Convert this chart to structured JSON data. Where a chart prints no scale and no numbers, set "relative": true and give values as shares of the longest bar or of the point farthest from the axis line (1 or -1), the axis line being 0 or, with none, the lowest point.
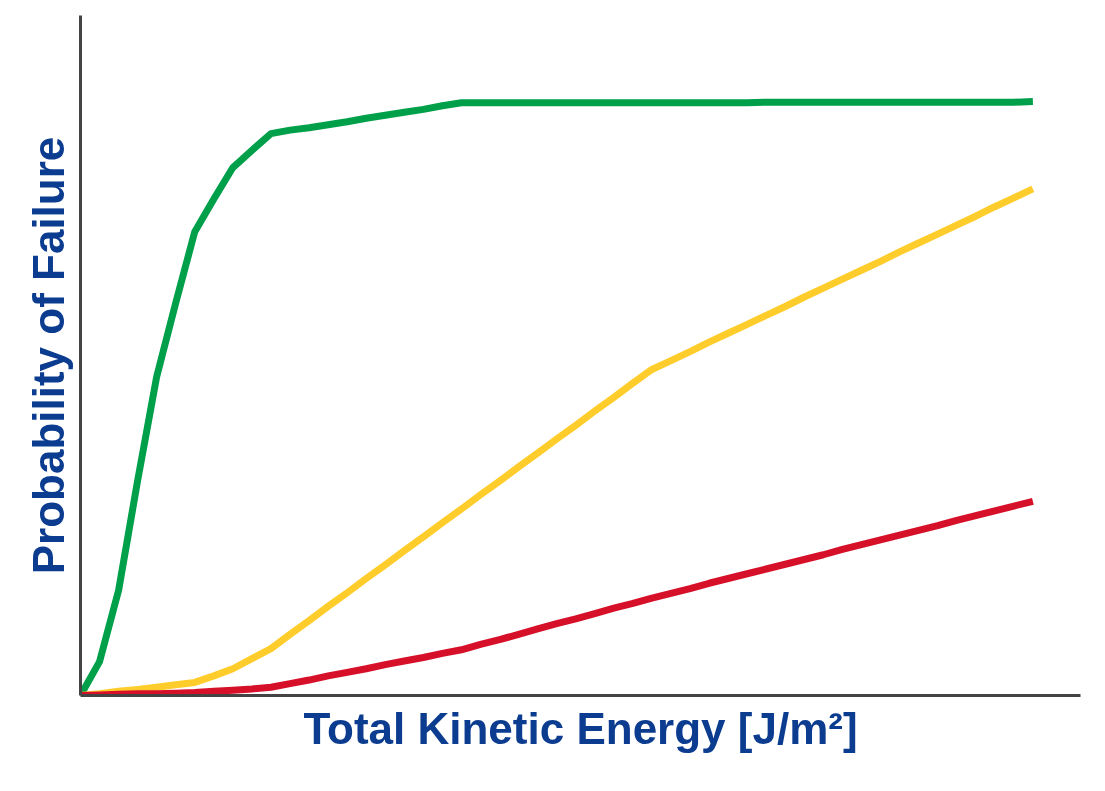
{
  "chart_data": {
    "type": "line",
    "relative": true,
    "xlabel": "Total Kinetic Energy [J/m²]",
    "ylabel": "Probability of Failure",
    "grid": false,
    "marker": "none",
    "line_style": "solid",
    "categories": [
      null,
      null,
      null,
      null,
      null,
      null,
      null,
      null,
      null,
      null,
      null,
      null,
      null,
      null,
      null,
      null,
      null,
      null,
      null,
      null,
      null,
      null,
      null,
      null,
      null,
      null,
      null,
      null,
      null,
      null,
      null,
      null,
      null,
      null,
      null,
      null,
      null,
      null,
      null,
      null,
      null,
      null,
      null,
      null,
      null,
      null,
      null,
      null,
      null,
      null,
      null
    ],
    "series": [
      {
        "color": "#00a04b",
        "values": [
          0,
          0.057,
          0.177,
          0.362,
          0.537,
          0.661,
          0.781,
          0.836,
          0.889,
          0.918,
          0.946,
          0.952,
          0.956,
          0.961,
          0.966,
          0.972,
          0.977,
          0.982,
          0.987,
          0.993,
          0.998,
          0.998,
          0.998,
          0.998,
          0.998,
          0.998,
          0.998,
          0.998,
          0.998,
          0.998,
          0.998,
          0.998,
          0.998,
          0.998,
          0.998,
          0.998,
          0.999,
          0.999,
          0.999,
          0.999,
          0.999,
          0.999,
          0.999,
          0.999,
          0.999,
          0.999,
          0.999,
          0.999,
          0.999,
          0.999,
          1
        ]
      },
      {
        "color": "#fecd2b",
        "values": [
          0,
          0.003,
          0.007,
          0.01,
          0.014,
          0.018,
          0.022,
          0.033,
          0.045,
          0.062,
          0.079,
          0.103,
          0.126,
          0.15,
          0.173,
          0.197,
          0.22,
          0.244,
          0.267,
          0.291,
          0.314,
          0.338,
          0.361,
          0.385,
          0.408,
          0.432,
          0.455,
          0.479,
          0.502,
          0.526,
          0.549,
          0.564,
          0.579,
          0.595,
          0.61,
          0.625,
          0.64,
          0.655,
          0.671,
          0.686,
          0.701,
          0.716,
          0.731,
          0.747,
          0.762,
          0.777,
          0.792,
          0.807,
          0.823,
          0.838,
          0.853
        ]
      },
      {
        "color": "#d7102a",
        "values": [
          0,
          0.001,
          0.002,
          0.003,
          0.003,
          0.004,
          0.005,
          0.007,
          0.009,
          0.011,
          0.014,
          0.02,
          0.026,
          0.033,
          0.039,
          0.045,
          0.052,
          0.058,
          0.064,
          0.071,
          0.077,
          0.086,
          0.094,
          0.103,
          0.112,
          0.121,
          0.129,
          0.138,
          0.147,
          0.155,
          0.164,
          0.172,
          0.18,
          0.189,
          0.197,
          0.205,
          0.213,
          0.221,
          0.229,
          0.237,
          0.246,
          0.254,
          0.262,
          0.27,
          0.278,
          0.286,
          0.295,
          0.303,
          0.311,
          0.319,
          0.327
        ]
      }
    ]
  }
}
